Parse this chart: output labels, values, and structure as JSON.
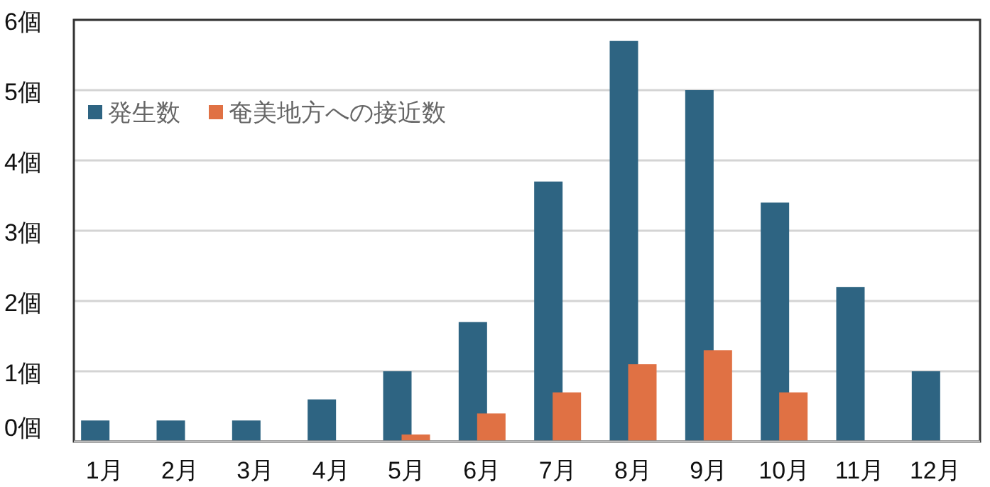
{
  "chart_data": {
    "type": "bar",
    "categories": [
      "1月",
      "2月",
      "3月",
      "4月",
      "5月",
      "6月",
      "7月",
      "8月",
      "9月",
      "10月",
      "11月",
      "12月"
    ],
    "series": [
      {
        "name": "発生数",
        "color": "#2e6482",
        "values": [
          0.3,
          0.3,
          0.3,
          0.6,
          1.0,
          1.7,
          3.7,
          5.7,
          5.0,
          3.4,
          2.2,
          1.0
        ]
      },
      {
        "name": "奄美地方への接近数",
        "color": "#e07144",
        "values": [
          0,
          0,
          0,
          0,
          0.1,
          0.4,
          0.7,
          1.1,
          1.3,
          0.7,
          0,
          0
        ]
      }
    ],
    "ylim": [
      0,
      6
    ],
    "yticks": [
      {
        "value": 0,
        "label": "0個"
      },
      {
        "value": 1,
        "label": "1個"
      },
      {
        "value": 2,
        "label": "2個"
      },
      {
        "value": 3,
        "label": "3個"
      },
      {
        "value": 4,
        "label": "4個"
      },
      {
        "value": 5,
        "label": "5個"
      },
      {
        "value": 6,
        "label": "6個"
      }
    ],
    "grid": "y",
    "legend": "top left"
  }
}
